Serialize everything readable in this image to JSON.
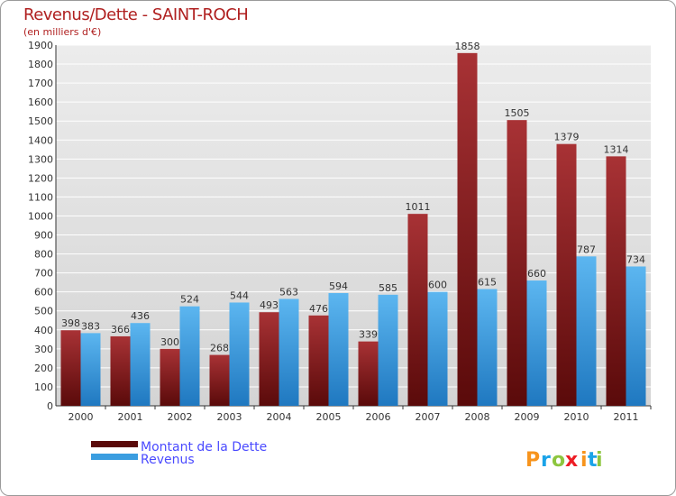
{
  "chart_data": {
    "type": "bar",
    "title": "Revenus/Dette - SAINT-ROCH",
    "subtitle": "(en milliers d'€)",
    "categories": [
      "2000",
      "2001",
      "2002",
      "2003",
      "2004",
      "2005",
      "2006",
      "2007",
      "2008",
      "2009",
      "2010",
      "2011"
    ],
    "series": [
      {
        "name": "Montant de la Dette",
        "color": "#8b1a1a",
        "values": [
          398,
          366,
          300,
          268,
          493,
          476,
          339,
          1011,
          1858,
          1505,
          1379,
          1314
        ]
      },
      {
        "name": "Revenus",
        "color": "#3a9de0",
        "values": [
          383,
          436,
          524,
          544,
          563,
          594,
          585,
          600,
          615,
          660,
          787,
          734
        ]
      }
    ],
    "ylim": [
      0,
      1900
    ],
    "yticks": [
      0,
      100,
      200,
      300,
      400,
      500,
      600,
      700,
      800,
      900,
      1000,
      1100,
      1200,
      1300,
      1400,
      1500,
      1600,
      1700,
      1800,
      1900
    ],
    "grid": true,
    "legend_position": "bottom-left"
  },
  "logo": {
    "letters": [
      "P",
      "r",
      "o",
      "x",
      "i",
      "t",
      "i"
    ],
    "colors": [
      "#f7941d",
      "#1aa3e8",
      "#8dc63f",
      "#ed1c24",
      "#f7941d",
      "#1aa3e8",
      "#8dc63f"
    ]
  }
}
